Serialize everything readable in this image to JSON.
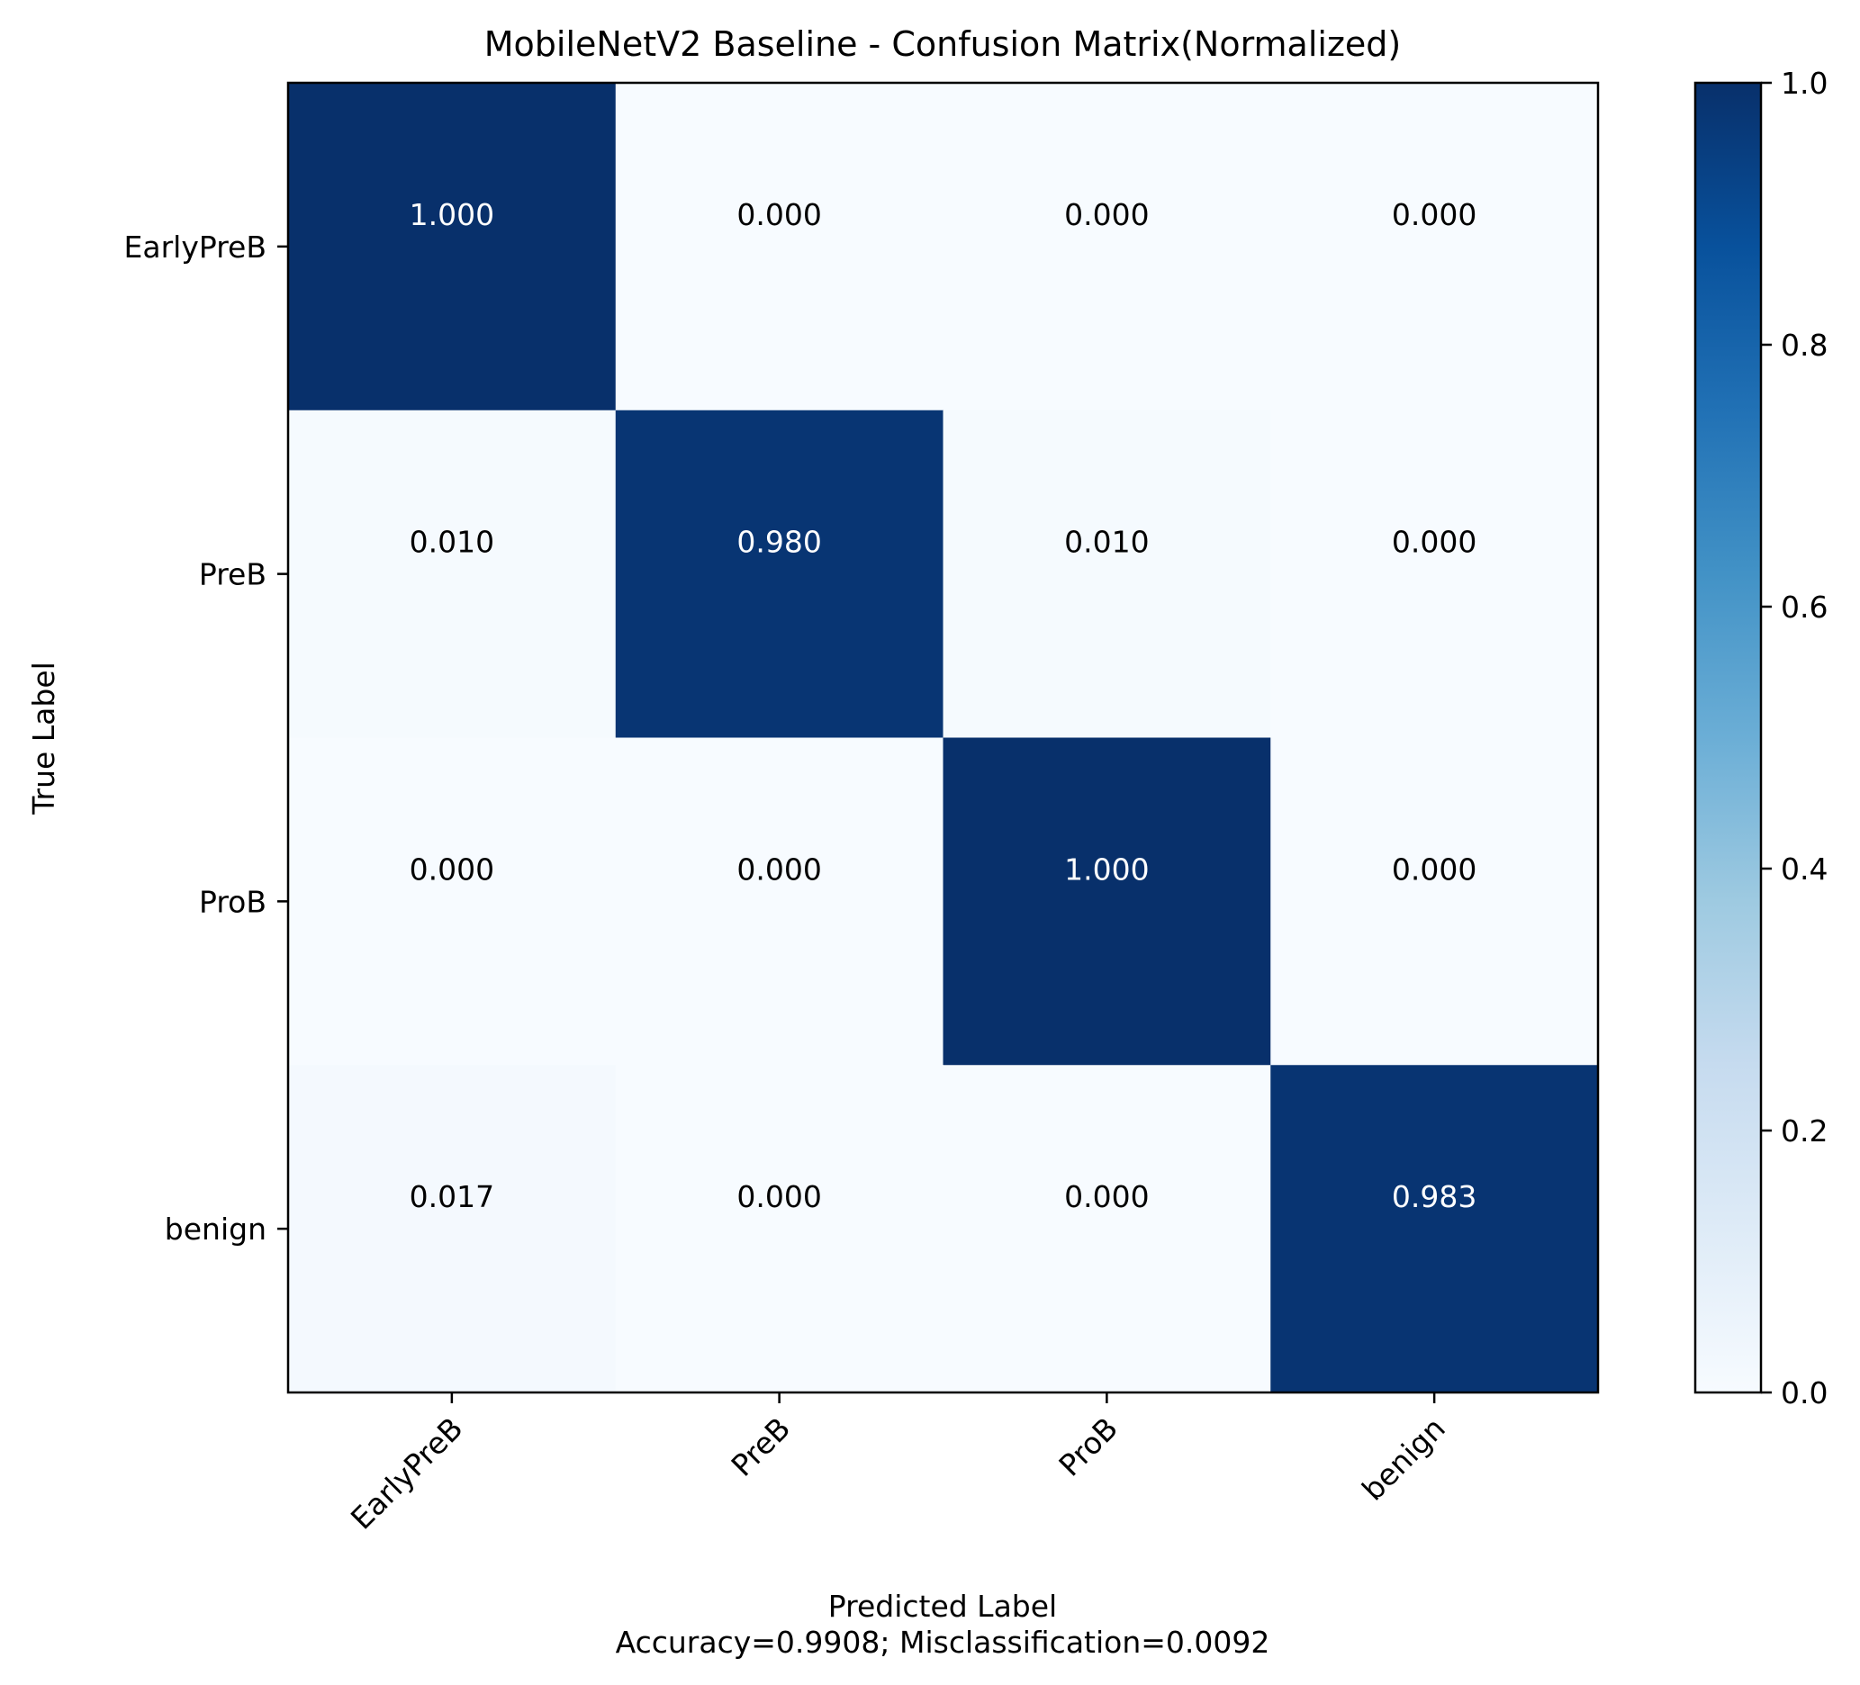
{
  "chart_data": {
    "type": "heatmap",
    "title": "MobileNetV2 Baseline - Confusion Matrix(Normalized)",
    "xlabel": "Predicted Label",
    "xlabel_sub": "Accuracy=0.9908; Misclassification=0.0092",
    "ylabel": "True Label",
    "x_categories": [
      "EarlyPreB",
      "PreB",
      "ProB",
      "benign"
    ],
    "y_categories": [
      "EarlyPreB",
      "PreB",
      "ProB",
      "benign"
    ],
    "values": [
      [
        1.0,
        0.0,
        0.0,
        0.0
      ],
      [
        0.01,
        0.98,
        0.01,
        0.0
      ],
      [
        0.0,
        0.0,
        1.0,
        0.0
      ],
      [
        0.017,
        0.0,
        0.0,
        0.983
      ]
    ],
    "value_labels": [
      [
        "1.000",
        "0.000",
        "0.000",
        "0.000"
      ],
      [
        "0.010",
        "0.980",
        "0.010",
        "0.000"
      ],
      [
        "0.000",
        "0.000",
        "1.000",
        "0.000"
      ],
      [
        "0.017",
        "0.000",
        "0.000",
        "0.983"
      ]
    ],
    "colormap": "Blues",
    "colorbar": {
      "range": [
        0.0,
        1.0
      ],
      "ticks": [
        0.0,
        0.2,
        0.4,
        0.6,
        0.8,
        1.0
      ],
      "tick_labels": [
        "0.0",
        "0.2",
        "0.4",
        "0.6",
        "0.8",
        "1.0"
      ]
    },
    "text_color_dark": "#000000",
    "text_color_light": "#ffffff"
  }
}
